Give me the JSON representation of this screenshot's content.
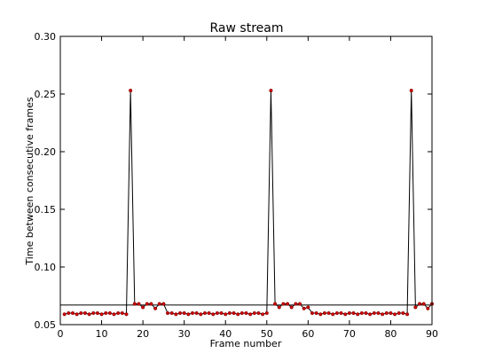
{
  "chart_data": {
    "type": "line",
    "title": "Raw stream",
    "xlabel": "Frame number",
    "ylabel": "Time between consecutive frames",
    "xlim": [
      0,
      90
    ],
    "ylim": [
      0.05,
      0.3
    ],
    "xticks": [
      0,
      10,
      20,
      30,
      40,
      50,
      60,
      70,
      80,
      90
    ],
    "xtick_labels": [
      "0",
      "10",
      "20",
      "30",
      "40",
      "50",
      "60",
      "70",
      "80",
      "90"
    ],
    "yticks": [
      0.05,
      0.1,
      0.15,
      0.2,
      0.25,
      0.3
    ],
    "ytick_labels": [
      "0.05",
      "0.10",
      "0.15",
      "0.20",
      "0.25",
      "0.30"
    ],
    "grid": false,
    "reference_line": {
      "y": 0.067,
      "color": "#000000"
    },
    "series": [
      {
        "marker_color": "#cc0000",
        "line_color": "#000000",
        "x": [
          1,
          2,
          3,
          4,
          5,
          6,
          7,
          8,
          9,
          10,
          11,
          12,
          13,
          14,
          15,
          16,
          17,
          18,
          19,
          20,
          21,
          22,
          23,
          24,
          25,
          26,
          27,
          28,
          29,
          30,
          31,
          32,
          33,
          34,
          35,
          36,
          37,
          38,
          39,
          40,
          41,
          42,
          43,
          44,
          45,
          46,
          47,
          48,
          49,
          50,
          51,
          52,
          53,
          54,
          55,
          56,
          57,
          58,
          59,
          60,
          61,
          62,
          63,
          64,
          65,
          66,
          67,
          68,
          69,
          70,
          71,
          72,
          73,
          74,
          75,
          76,
          77,
          78,
          79,
          80,
          81,
          82,
          83,
          84,
          85,
          86,
          87,
          88,
          89,
          90
        ],
        "y": [
          0.059,
          0.06,
          0.06,
          0.059,
          0.06,
          0.06,
          0.059,
          0.06,
          0.06,
          0.059,
          0.06,
          0.06,
          0.059,
          0.06,
          0.06,
          0.059,
          0.253,
          0.068,
          0.068,
          0.065,
          0.068,
          0.068,
          0.064,
          0.068,
          0.068,
          0.06,
          0.06,
          0.059,
          0.06,
          0.06,
          0.059,
          0.06,
          0.06,
          0.059,
          0.06,
          0.06,
          0.059,
          0.06,
          0.06,
          0.059,
          0.06,
          0.06,
          0.059,
          0.06,
          0.06,
          0.059,
          0.06,
          0.06,
          0.059,
          0.06,
          0.253,
          0.068,
          0.065,
          0.068,
          0.068,
          0.065,
          0.068,
          0.068,
          0.064,
          0.065,
          0.06,
          0.06,
          0.059,
          0.06,
          0.06,
          0.059,
          0.06,
          0.06,
          0.059,
          0.06,
          0.06,
          0.059,
          0.06,
          0.06,
          0.059,
          0.06,
          0.06,
          0.059,
          0.06,
          0.06,
          0.059,
          0.06,
          0.06,
          0.059,
          0.253,
          0.065,
          0.068,
          0.068,
          0.064,
          0.068
        ]
      }
    ]
  }
}
